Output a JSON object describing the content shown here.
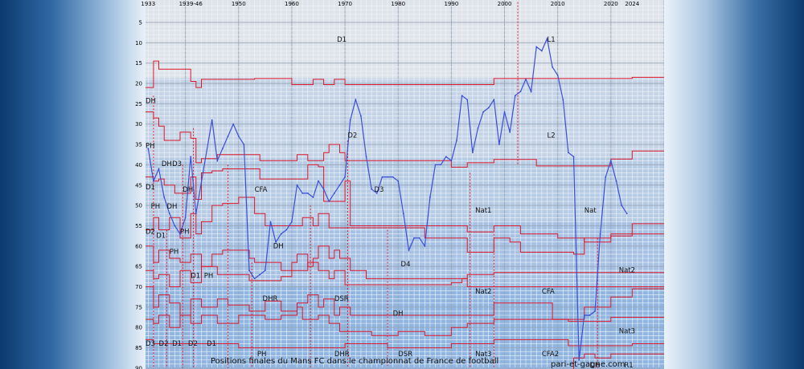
{
  "chart_data": {
    "type": "line",
    "title": "Positions finales du Mans FC dans le championnat de France de football",
    "credit": "pari-et-gagne.com",
    "x_tick_labels": [
      "1933",
      "1939-46",
      "1950",
      "1960",
      "1970",
      "1980",
      "1990",
      "2000",
      "2010",
      "2020",
      "2024"
    ],
    "x_tick_years": [
      1933,
      1941,
      1950,
      1960,
      1970,
      1980,
      1990,
      2000,
      2010,
      2020,
      2024
    ],
    "xlim": [
      1932.5,
      2030
    ],
    "ylim": [
      1,
      90
    ],
    "y_ticks": [
      5,
      10,
      15,
      20,
      25,
      30,
      35,
      40,
      45,
      50,
      55,
      60,
      65,
      70,
      75,
      80,
      85,
      90
    ],
    "y_inverted": true,
    "series": [
      {
        "color": "#3b4fd6",
        "x": [
          1933,
          1934,
          1935,
          1936,
          1937,
          1938,
          1939,
          1940,
          1941,
          1942,
          1945,
          1946,
          1947,
          1948,
          1949,
          1950,
          1951,
          1952,
          1953,
          1954,
          1955,
          1956,
          1957,
          1958,
          1959,
          1960,
          1961,
          1962,
          1963,
          1964,
          1965,
          1966,
          1967,
          1968,
          1969,
          1970,
          1971,
          1972,
          1973,
          1974,
          1975,
          1976,
          1977,
          1978,
          1979,
          1980,
          1981,
          1982,
          1983,
          1984,
          1985,
          1986,
          1987,
          1988,
          1989,
          1990,
          1991,
          1992,
          1993,
          1994,
          1995,
          1996,
          1997,
          1998,
          1999,
          2000,
          2001,
          2002,
          2003,
          2004,
          2005,
          2006,
          2007,
          2008,
          2009,
          2010,
          2011,
          2012,
          2013,
          2014,
          2015,
          2016,
          2017,
          2018,
          2019,
          2020,
          2021,
          2022,
          2023
        ],
        "y": [
          36,
          44,
          41,
          48,
          52,
          55,
          57,
          53,
          38,
          52,
          29,
          39,
          36,
          33,
          30,
          33,
          35,
          66,
          68,
          67,
          66,
          54,
          59,
          57,
          56,
          54,
          45,
          47,
          47,
          48,
          44,
          46,
          49,
          47,
          45,
          43,
          29,
          24,
          28,
          38,
          46,
          47,
          43,
          43,
          43,
          44,
          52,
          61,
          58,
          58,
          60,
          48,
          40,
          40,
          38,
          39,
          34,
          23,
          24,
          37,
          31,
          27,
          26,
          24,
          35,
          27,
          32,
          23,
          22,
          19,
          22,
          11,
          12,
          9,
          16,
          18,
          24,
          37,
          38,
          88,
          77,
          77,
          76,
          57,
          43,
          39,
          44,
          50,
          52
        ]
      }
    ],
    "division_labels": [
      {
        "text": "D1",
        "x": 1968.5,
        "y": 9.2
      },
      {
        "text": "L1",
        "x": 2008,
        "y": 9.2
      },
      {
        "text": "DH",
        "x": 1932.5,
        "y": 24.2
      },
      {
        "text": "D2",
        "x": 1970.5,
        "y": 32.7
      },
      {
        "text": "L2",
        "x": 2008,
        "y": 32.7
      },
      {
        "text": "PH",
        "x": 1932.5,
        "y": 35.3
      },
      {
        "text": "DH",
        "x": 1935.5,
        "y": 39.7
      },
      {
        "text": "D3",
        "x": 1937.5,
        "y": 39.7
      },
      {
        "text": "D1",
        "x": 1932.5,
        "y": 45.4
      },
      {
        "text": "DH",
        "x": 1939.5,
        "y": 46
      },
      {
        "text": "CFA",
        "x": 1953,
        "y": 46
      },
      {
        "text": "D3",
        "x": 1975.5,
        "y": 46
      },
      {
        "text": "PH",
        "x": 1933.5,
        "y": 50.2
      },
      {
        "text": "DH",
        "x": 1936.5,
        "y": 50.2
      },
      {
        "text": "Nat1",
        "x": 1994.5,
        "y": 51.2
      },
      {
        "text": "Nat",
        "x": 2015,
        "y": 51.2
      },
      {
        "text": "D2",
        "x": 1932.5,
        "y": 56.4
      },
      {
        "text": "D1",
        "x": 1934.5,
        "y": 57.4
      },
      {
        "text": "PH",
        "x": 1939,
        "y": 56.4
      },
      {
        "text": "DH",
        "x": 1956.5,
        "y": 59.9
      },
      {
        "text": "PH",
        "x": 1937,
        "y": 61.3
      },
      {
        "text": "D4",
        "x": 1980.5,
        "y": 64.4
      },
      {
        "text": "D1",
        "x": 1941,
        "y": 67.2
      },
      {
        "text": "PH",
        "x": 1943.5,
        "y": 67.2
      },
      {
        "text": "Nat2",
        "x": 2021.5,
        "y": 65.9
      },
      {
        "text": "Nat2",
        "x": 1994.5,
        "y": 71.1
      },
      {
        "text": "CFA",
        "x": 2007,
        "y": 71.1
      },
      {
        "text": "DHR",
        "x": 1954.5,
        "y": 72.9
      },
      {
        "text": "DSR",
        "x": 1968,
        "y": 72.9
      },
      {
        "text": "DH",
        "x": 1979,
        "y": 76.5
      },
      {
        "text": "Nat3",
        "x": 2021.5,
        "y": 80.8
      },
      {
        "text": "D3",
        "x": 1932.5,
        "y": 83.9
      },
      {
        "text": "D2",
        "x": 1935,
        "y": 83.9
      },
      {
        "text": "D1",
        "x": 1937.5,
        "y": 83.9
      },
      {
        "text": "D2",
        "x": 1940.5,
        "y": 83.9
      },
      {
        "text": "D1",
        "x": 1944,
        "y": 83.9
      },
      {
        "text": "PH",
        "x": 1953.5,
        "y": 86.5
      },
      {
        "text": "DHR",
        "x": 1968,
        "y": 86.5
      },
      {
        "text": "DSR",
        "x": 1980,
        "y": 86.5
      },
      {
        "text": "Nat3",
        "x": 1994.5,
        "y": 86.5
      },
      {
        "text": "CFA2",
        "x": 2007,
        "y": 86.5
      },
      {
        "text": "DH",
        "x": 2016,
        "y": 89.2
      },
      {
        "text": "R1",
        "x": 2022.5,
        "y": 89.2
      }
    ]
  },
  "colors": {
    "series_line": "#3b4fd6",
    "division_boundary": "#e01a2a",
    "band_top": "#dce3ec",
    "band_bottom": "#85b0de",
    "minor_grid": "#f2f6fb",
    "major_grid": "#99a6b6"
  }
}
